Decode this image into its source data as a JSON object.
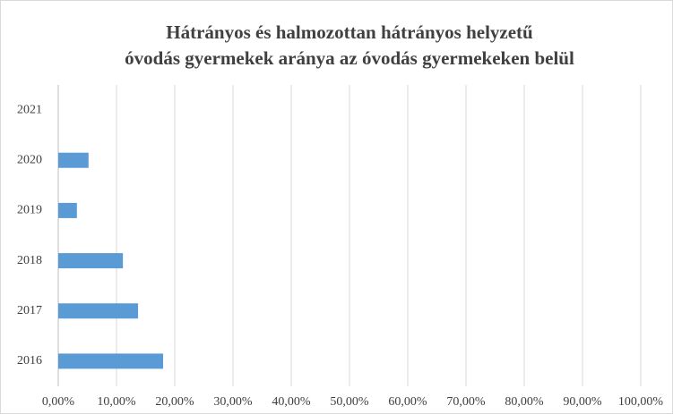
{
  "chart_data": {
    "type": "hbar",
    "title": [
      "Hátrányos és halmozottan hátrányos helyzetű",
      "óvodás gyermekek aránya az óvodás gyermekeken belül"
    ],
    "categories": [
      "2016",
      "2017",
      "2018",
      "2019",
      "2020",
      "2021"
    ],
    "values": [
      18.0,
      13.7,
      11.1,
      3.2,
      5.2,
      null
    ],
    "color": "#5b9bd5",
    "xlim": [
      0,
      100
    ],
    "xticks": [
      {
        "value": 0,
        "label": "0,00%"
      },
      {
        "value": 10,
        "label": "10,00%"
      },
      {
        "value": 20,
        "label": "20,00%"
      },
      {
        "value": 30,
        "label": "30,00%"
      },
      {
        "value": 40,
        "label": "40,00%"
      },
      {
        "value": 50,
        "label": "50,00%"
      },
      {
        "value": 60,
        "label": "60,00%"
      },
      {
        "value": 70,
        "label": "70,00%"
      },
      {
        "value": 80,
        "label": "80,00%"
      },
      {
        "value": 90,
        "label": "90,00%"
      },
      {
        "value": 100,
        "label": "100,00%"
      }
    ],
    "grid": true
  }
}
